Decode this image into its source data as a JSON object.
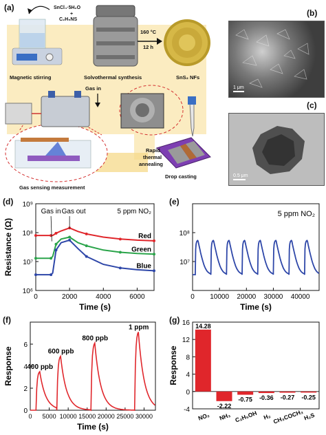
{
  "panel_a": {
    "label": "(a)",
    "reagent_line1": "SnCl₄·5H₂O",
    "reagent_plus": "+",
    "reagent_line2": "C₂H₅NS",
    "temperature": "160 °C",
    "duration": "12 h",
    "step_stirring": "Magnetic stirring",
    "step_solvothermal": "Solvothermal synthesis",
    "product": "SnS₂ NFs",
    "step_annealing_1": "Rapid",
    "step_annealing_2": "thermal",
    "step_annealing_3": "annealing",
    "step_drop": "Drop casting",
    "step_sensing": "Gas sensing measurement",
    "gas_in": "Gas in",
    "colors": {
      "band": "#f6d98a",
      "purple": "#6b3fa0"
    }
  },
  "panel_b": {
    "label": "(b)",
    "scale": "1 μm"
  },
  "panel_c": {
    "label": "(c)",
    "scale": "0.5 μm"
  },
  "chart_data": [
    {
      "panel": "(d)",
      "type": "line",
      "xlabel": "Time (s)",
      "ylabel": "Resistance (Ω)",
      "xlim": [
        0,
        7000
      ],
      "ylim": [
        1000000,
        1000000000
      ],
      "yscale": "log",
      "xticks": [
        "0",
        "2000",
        "4000",
        "6000"
      ],
      "yticks": [
        "10⁶",
        "10⁷",
        "10⁸",
        "10⁹"
      ],
      "annotation_conc": "5 ppm NO₂",
      "annotation_gas_in": "Gas in",
      "annotation_gas_out": "Gas out",
      "series": [
        {
          "name": "Red",
          "color": "#e0262b",
          "x": [
            0,
            500,
            900,
            1000,
            1200,
            1500,
            2000,
            2500,
            3000,
            4000,
            5000,
            6000,
            7000
          ],
          "y": [
            80000000,
            80000000,
            80000000,
            80000000,
            95000000,
            115000000,
            145000000,
            110000000,
            90000000,
            70000000,
            60000000,
            55000000,
            52000000
          ]
        },
        {
          "name": "Green",
          "color": "#2aa44a",
          "x": [
            0,
            500,
            900,
            1000,
            1200,
            1500,
            2000,
            2500,
            3000,
            4000,
            5000,
            6000,
            7000
          ],
          "y": [
            13000000,
            13000000,
            13000000,
            15000000,
            40000000,
            60000000,
            70000000,
            45000000,
            35000000,
            25000000,
            21000000,
            19000000,
            18000000
          ]
        },
        {
          "name": "Blue",
          "color": "#2d46a8",
          "x": [
            0,
            500,
            900,
            1000,
            1200,
            1500,
            2000,
            2500,
            3000,
            4000,
            5000,
            6000,
            7000
          ],
          "y": [
            3500000,
            3500000,
            3500000,
            4000000,
            25000000,
            45000000,
            55000000,
            28000000,
            15000000,
            8000000,
            6000000,
            5200000,
            4800000
          ]
        }
      ]
    },
    {
      "panel": "(e)",
      "type": "line",
      "xlabel": "Time (s)",
      "ylabel": "",
      "xlim": [
        0,
        47000
      ],
      "ylim": [
        1000000,
        1000000000
      ],
      "yscale": "log",
      "xticks": [
        "0",
        "10000",
        "20000",
        "30000",
        "40000"
      ],
      "yticks": [
        "10⁷",
        "10⁸"
      ],
      "annotation_conc": "5 ppm NO₂",
      "cycles": 8,
      "cycle_period": 5800,
      "baseline": 3500000,
      "peak": 55000000,
      "series": [
        {
          "color": "#2d46a8"
        }
      ]
    },
    {
      "panel": "(f)",
      "type": "line",
      "xlabel": "Time (s)",
      "ylabel": "Response",
      "xlim": [
        0,
        33000
      ],
      "ylim": [
        0,
        8
      ],
      "xticks": [
        "0",
        "5000",
        "10000",
        "15000",
        "20000",
        "25000",
        "30000"
      ],
      "yticks": [
        "0",
        "2",
        "4",
        "6"
      ],
      "pulses": [
        {
          "label": "400 ppb",
          "start": 1500,
          "peak": 3.5
        },
        {
          "label": "600 ppb",
          "start": 7000,
          "peak": 4.9
        },
        {
          "label": "800 ppb",
          "start": 16000,
          "peak": 6.1
        },
        {
          "label": "1 ppm",
          "start": 27500,
          "peak": 7.1
        }
      ],
      "series": [
        {
          "color": "#e0262b"
        }
      ]
    },
    {
      "panel": "(g)",
      "type": "bar",
      "ylabel": "Response",
      "ylim": [
        -4,
        16
      ],
      "yticks": [
        "-4",
        "0",
        "4",
        "8",
        "12",
        "16"
      ],
      "categories": [
        "NO₂",
        "NH₃",
        "C₂H₅OH",
        "H₂",
        "CH₃COCH₃",
        "H₂S"
      ],
      "values": [
        14.28,
        -2.22,
        -0.75,
        -0.36,
        -0.27,
        -0.25
      ],
      "value_labels": [
        "14.28",
        "-2.22",
        "-0.75",
        "-0.36",
        "-0.27",
        "-0.25"
      ],
      "series": [
        {
          "color": "#e0262b"
        }
      ]
    }
  ]
}
